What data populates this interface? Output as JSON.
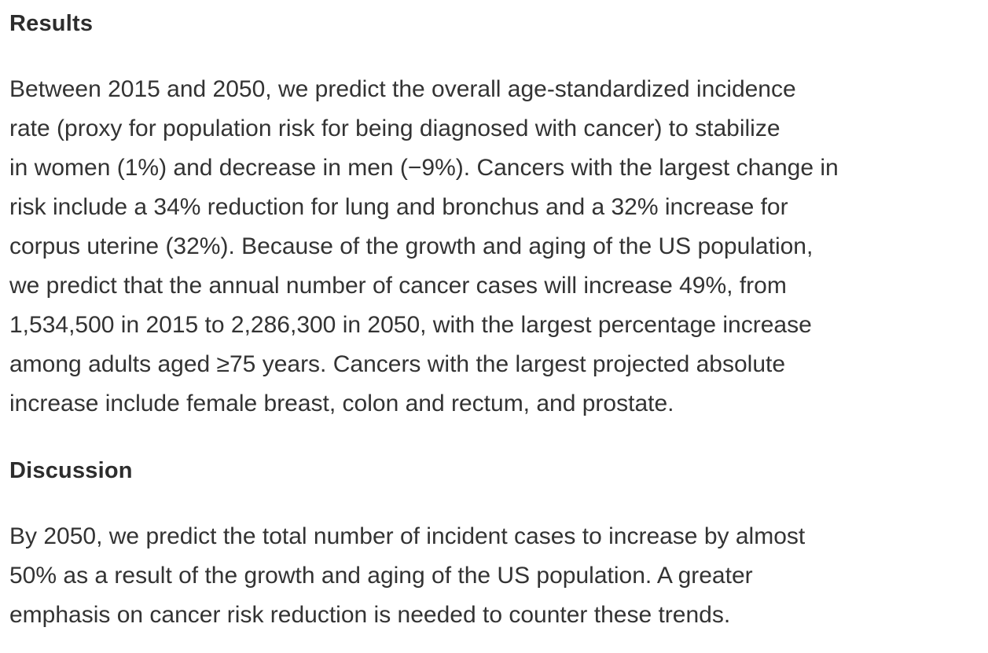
{
  "colors": {
    "background": "#ffffff",
    "heading_text": "#2d2d2d",
    "body_text": "#333333"
  },
  "sections": [
    {
      "heading": "Results",
      "body": "Between 2015 and 2050, we predict the overall age-standardized incidence\nrate (proxy for population risk for being diagnosed with cancer) to stabilize\nin women (1%) and decrease in men (−9%). Cancers with the largest change in\nrisk include a 34% reduction for lung and bronchus and a 32% increase for\ncorpus uterine (32%). Because of the growth and aging of the US population,\nwe predict that the annual number of cancer cases will increase 49%, from\n1,534,500 in 2015 to 2,286,300 in 2050, with the largest percentage increase\namong adults aged ≥75 years. Cancers with the largest projected absolute\nincrease include female breast, colon and rectum, and prostate."
    },
    {
      "heading": "Discussion",
      "body": "By 2050, we predict the total number of incident cases to increase by almost\n50% as a result of the growth and aging of the US population. A greater\nemphasis on cancer risk reduction is needed to counter these trends."
    }
  ]
}
